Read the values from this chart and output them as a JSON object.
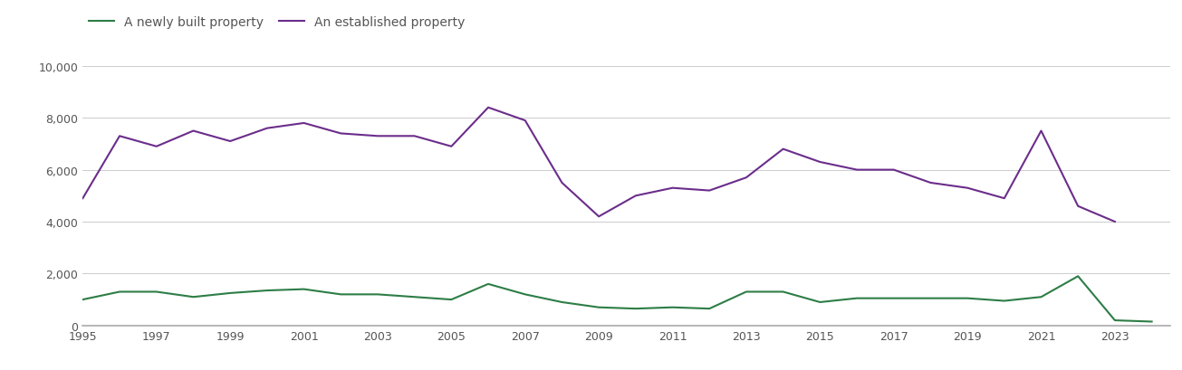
{
  "years": [
    1995,
    1996,
    1997,
    1998,
    1999,
    2000,
    2001,
    2002,
    2003,
    2004,
    2005,
    2006,
    2007,
    2008,
    2009,
    2010,
    2011,
    2012,
    2013,
    2014,
    2015,
    2016,
    2017,
    2018,
    2019,
    2020,
    2021,
    2022,
    2023,
    2024
  ],
  "new_build": [
    1000,
    1300,
    1300,
    1100,
    1250,
    1350,
    1400,
    1200,
    1200,
    1100,
    1000,
    1600,
    1200,
    900,
    700,
    650,
    700,
    650,
    1300,
    1300,
    900,
    1050,
    1050,
    1050,
    1050,
    950,
    1100,
    1900,
    200,
    150
  ],
  "established": [
    4900,
    7300,
    6900,
    7500,
    7100,
    7600,
    7800,
    7400,
    7300,
    7300,
    6900,
    8400,
    7900,
    5500,
    4200,
    5000,
    5300,
    5200,
    5700,
    6800,
    6300,
    6000,
    6000,
    5500,
    5300,
    4900,
    7500,
    4600,
    4000,
    null
  ],
  "new_build_color": "#2d7d46",
  "established_color": "#6b2d8b",
  "legend_new": "A newly built property",
  "legend_established": "An established property",
  "ylim": [
    0,
    10000
  ],
  "yticks": [
    0,
    2000,
    4000,
    6000,
    8000,
    10000
  ],
  "background_color": "#ffffff",
  "grid_color": "#cccccc",
  "tick_label_color": "#555555",
  "linewidth": 1.5,
  "xticks": [
    1995,
    1997,
    1999,
    2001,
    2003,
    2005,
    2007,
    2009,
    2011,
    2013,
    2015,
    2017,
    2019,
    2021,
    2023
  ],
  "xlim_left": 1995,
  "xlim_right": 2024.5
}
